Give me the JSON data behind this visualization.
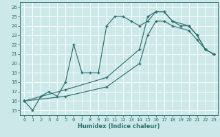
{
  "xlabel": "Humidex (Indice chaleur)",
  "background_color": "#cce8e8",
  "grid_color": "#ffffff",
  "line_color": "#2a7070",
  "xlim": [
    -0.5,
    23.5
  ],
  "ylim": [
    14.5,
    26.5
  ],
  "xticks": [
    0,
    1,
    2,
    3,
    4,
    5,
    6,
    7,
    8,
    9,
    10,
    11,
    12,
    13,
    14,
    15,
    16,
    17,
    18,
    19,
    20,
    21,
    22,
    23
  ],
  "yticks": [
    15,
    16,
    17,
    18,
    19,
    20,
    21,
    22,
    23,
    24,
    25,
    26
  ],
  "line1_x": [
    0,
    1,
    2,
    3,
    4,
    5,
    6,
    7,
    8,
    9,
    10,
    11,
    12,
    13,
    14,
    15,
    16,
    17,
    18,
    19,
    20,
    21,
    22,
    23
  ],
  "line1_y": [
    16,
    15,
    16.5,
    17,
    16.5,
    18,
    22,
    19,
    19,
    19,
    24,
    25,
    25,
    24.5,
    24,
    24.5,
    25.5,
    25.5,
    24.5,
    24,
    24,
    23,
    21.5,
    21
  ],
  "line2_x": [
    0,
    5,
    10,
    14,
    15,
    16,
    17,
    18,
    20,
    21,
    22,
    23
  ],
  "line2_y": [
    16,
    17.2,
    18.5,
    21.5,
    25,
    25.5,
    25.5,
    24.5,
    24,
    23,
    21.5,
    21
  ],
  "line3_x": [
    0,
    5,
    10,
    14,
    15,
    16,
    17,
    18,
    20,
    21,
    22,
    23
  ],
  "line3_y": [
    16,
    16.5,
    17.5,
    20,
    23,
    24.5,
    24.5,
    24,
    23.5,
    22.5,
    21.5,
    21
  ]
}
